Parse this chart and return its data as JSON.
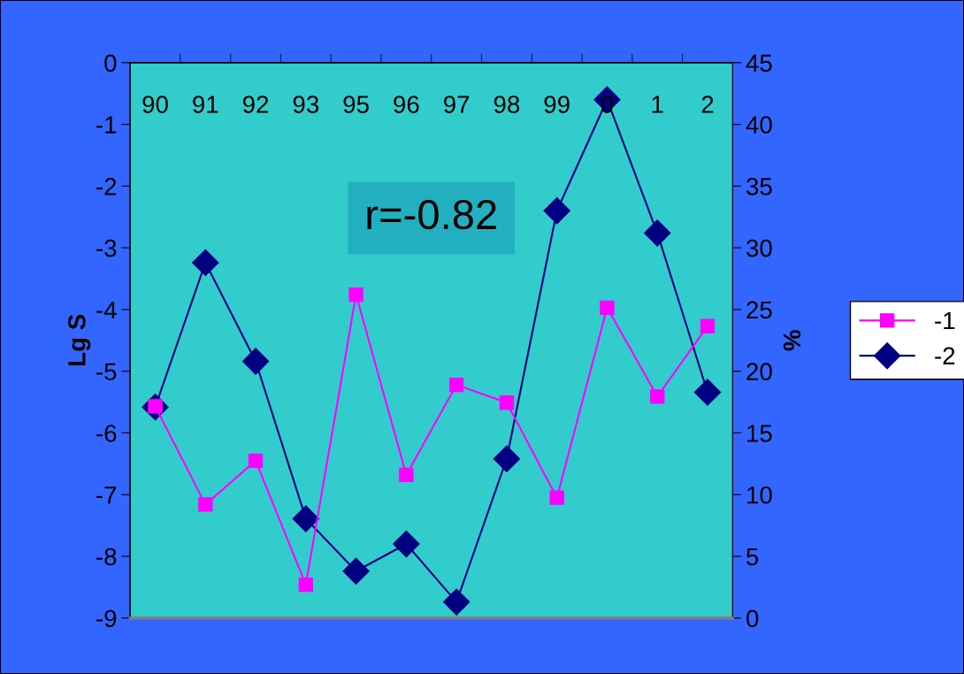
{
  "chart_data": {
    "type": "line",
    "categories": [
      "90",
      "91",
      "92",
      "93",
      "95",
      "96",
      "97",
      "98",
      "99",
      "0",
      "1",
      "2"
    ],
    "series": [
      {
        "name": "-1",
        "color": "#ff00ff",
        "marker": "square",
        "values": [
          -5.57,
          -7.16,
          -6.45,
          -8.46,
          -3.76,
          -6.68,
          -5.22,
          -5.51,
          -7.05,
          -3.97,
          -5.41,
          -4.27
        ]
      },
      {
        "name": "-2",
        "color": "#000080",
        "marker": "diamond",
        "axis": "y2",
        "values": [
          17.1,
          28.8,
          20.8,
          8.05,
          3.8,
          6.0,
          1.3,
          12.9,
          33.0,
          42.0,
          31.2,
          18.3
        ]
      }
    ],
    "ylabel": "Lg S",
    "y2label": "%",
    "ylim": [
      -9,
      0
    ],
    "yticks": [
      -9,
      -8,
      -7,
      -6,
      -5,
      -4,
      -3,
      -2,
      -1,
      0
    ],
    "y2lim": [
      0,
      45
    ],
    "y2ticks": [
      0,
      5,
      10,
      15,
      20,
      25,
      30,
      35,
      40,
      45
    ],
    "annotations": [
      "r=-0.82"
    ],
    "legend": "right",
    "grid": false
  }
}
